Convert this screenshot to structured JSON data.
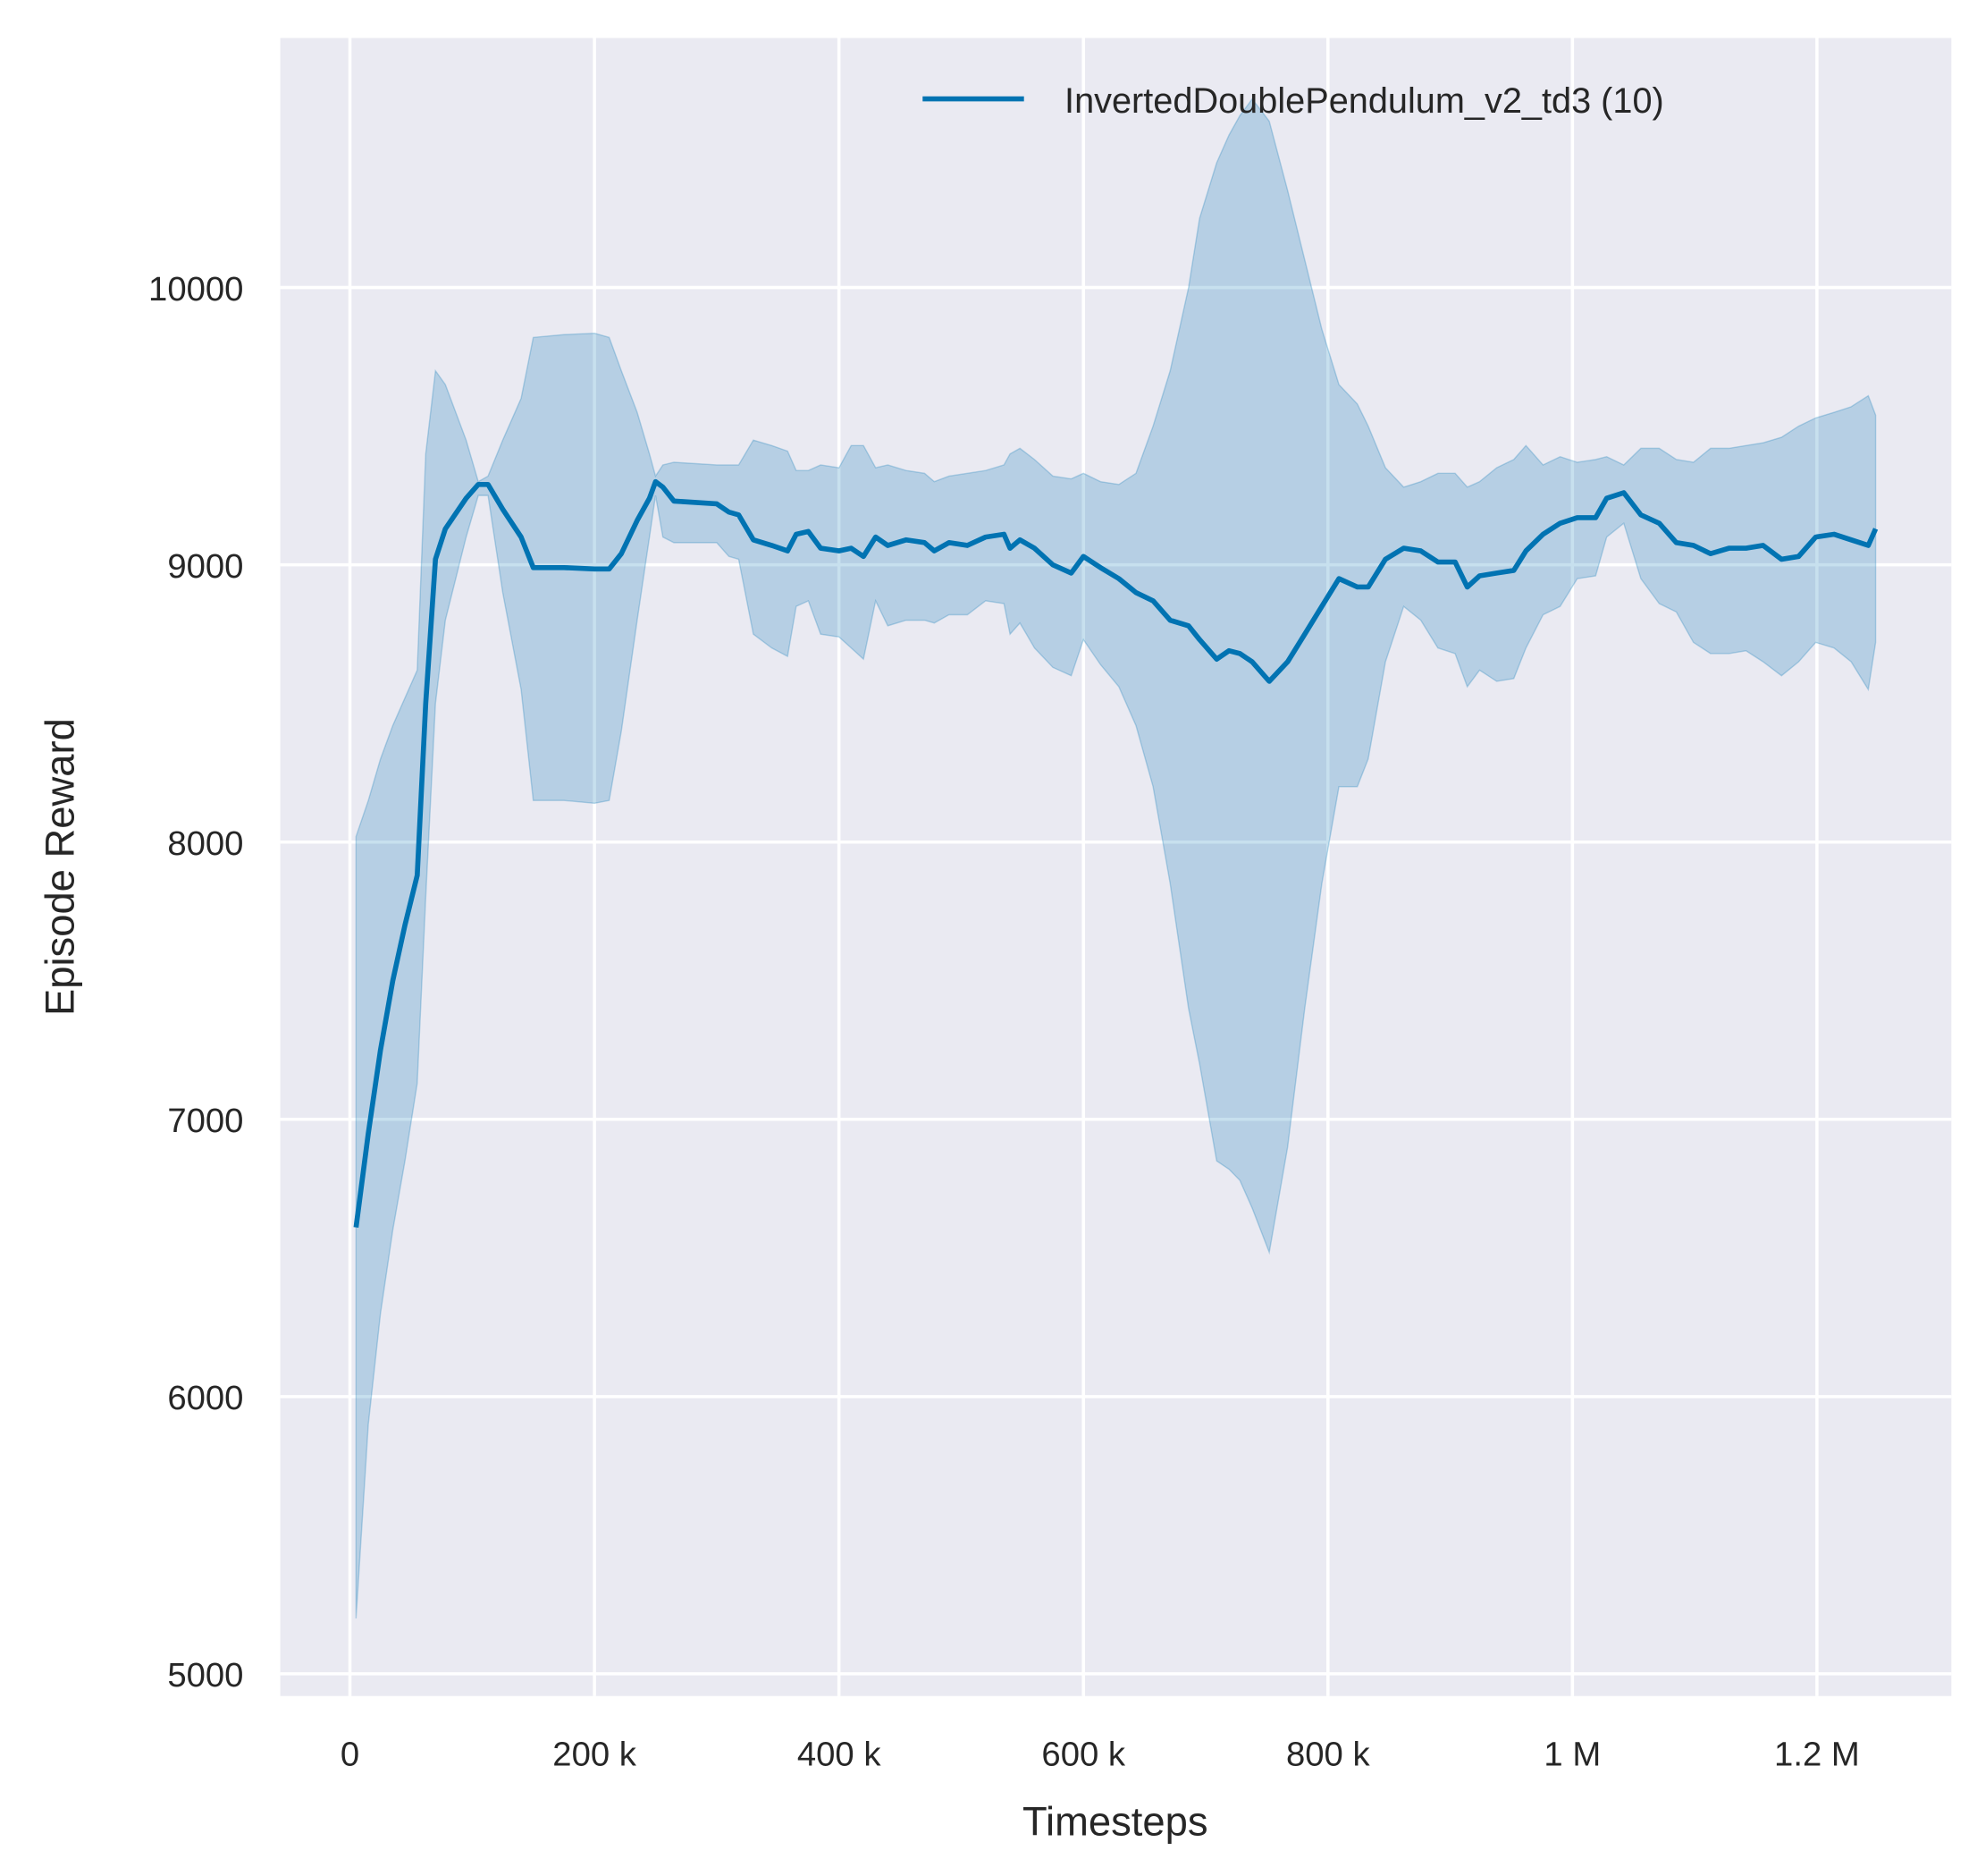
{
  "chart_data": {
    "type": "line",
    "xlabel": "Timesteps",
    "ylabel": "Episode Reward",
    "xlim": [
      -57000,
      1310000
    ],
    "ylim": [
      4920,
      10900
    ],
    "xticks": [
      0,
      200000,
      400000,
      600000,
      800000,
      1000000,
      1200000
    ],
    "xtick_labels": [
      "0",
      "200 k",
      "400 k",
      "600 k",
      "800 k",
      "1 M",
      "1.2 M"
    ],
    "yticks": [
      5000,
      6000,
      7000,
      8000,
      9000,
      10000
    ],
    "ytick_labels": [
      "5000",
      "6000",
      "7000",
      "8000",
      "9000",
      "10000"
    ],
    "grid": true,
    "background": "#eaeaf2",
    "legend_position": "top-right",
    "series": [
      {
        "name": "InvertedDoublePendulum_v2_td3 (10)",
        "color": "#0173b2",
        "band_color": "#0173b2",
        "columns": [
          "timesteps",
          "mean",
          "lower",
          "upper"
        ],
        "points": [
          [
            5000,
            6610,
            5200,
            8020
          ],
          [
            15000,
            6950,
            5900,
            8150
          ],
          [
            25000,
            7250,
            6300,
            8300
          ],
          [
            35000,
            7500,
            6600,
            8420
          ],
          [
            45000,
            7700,
            6850,
            8520
          ],
          [
            55000,
            7880,
            7130,
            8620
          ],
          [
            62000,
            8500,
            7800,
            9400
          ],
          [
            70000,
            9020,
            8500,
            9700
          ],
          [
            78000,
            9130,
            8800,
            9650
          ],
          [
            95000,
            9240,
            9100,
            9450
          ],
          [
            105000,
            9290,
            9250,
            9300
          ],
          [
            113000,
            9290,
            9250,
            9320
          ],
          [
            125000,
            9200,
            8900,
            9450
          ],
          [
            140000,
            9100,
            8550,
            9600
          ],
          [
            150000,
            8990,
            8150,
            9820
          ],
          [
            175000,
            8990,
            8150,
            9830
          ],
          [
            200000,
            8985,
            8140,
            9835
          ],
          [
            212000,
            8985,
            8150,
            9820
          ],
          [
            222000,
            9040,
            8400,
            9700
          ],
          [
            235000,
            9160,
            8800,
            9550
          ],
          [
            245000,
            9240,
            9100,
            9400
          ],
          [
            250000,
            9300,
            9250,
            9320
          ],
          [
            256000,
            9280,
            9100,
            9360
          ],
          [
            265000,
            9230,
            9080,
            9370
          ],
          [
            300000,
            9220,
            9080,
            9360
          ],
          [
            310000,
            9190,
            9030,
            9360
          ],
          [
            318000,
            9180,
            9020,
            9360
          ],
          [
            330000,
            9090,
            8750,
            9450
          ],
          [
            345000,
            9070,
            8700,
            9430
          ],
          [
            358000,
            9050,
            8670,
            9410
          ],
          [
            365000,
            9110,
            8850,
            9340
          ],
          [
            375000,
            9120,
            8870,
            9340
          ],
          [
            385000,
            9060,
            8750,
            9360
          ],
          [
            400000,
            9050,
            8740,
            9350
          ],
          [
            410000,
            9060,
            8700,
            9430
          ],
          [
            420000,
            9030,
            8660,
            9430
          ],
          [
            430000,
            9100,
            8870,
            9350
          ],
          [
            440000,
            9070,
            8780,
            9360
          ],
          [
            455000,
            9090,
            8800,
            9340
          ],
          [
            470000,
            9080,
            8800,
            9330
          ],
          [
            478000,
            9050,
            8790,
            9300
          ],
          [
            490000,
            9080,
            8820,
            9320
          ],
          [
            505000,
            9070,
            8820,
            9330
          ],
          [
            520000,
            9100,
            8870,
            9340
          ],
          [
            535000,
            9110,
            8860,
            9360
          ],
          [
            540000,
            9060,
            8750,
            9400
          ],
          [
            548000,
            9090,
            8790,
            9420
          ],
          [
            560000,
            9060,
            8700,
            9380
          ],
          [
            575000,
            9000,
            8630,
            9320
          ],
          [
            590000,
            8970,
            8600,
            9310
          ],
          [
            600000,
            9030,
            8730,
            9330
          ],
          [
            614000,
            8990,
            8640,
            9300
          ],
          [
            629000,
            8950,
            8560,
            9290
          ],
          [
            643000,
            8900,
            8420,
            9330
          ],
          [
            657000,
            8870,
            8200,
            9500
          ],
          [
            671000,
            8800,
            7850,
            9700
          ],
          [
            686000,
            8780,
            7400,
            10000
          ],
          [
            695000,
            8730,
            7200,
            10250
          ],
          [
            709000,
            8660,
            6850,
            10450
          ],
          [
            719000,
            8690,
            6820,
            10550
          ],
          [
            728000,
            8680,
            6780,
            10620
          ],
          [
            738000,
            8650,
            6680,
            10680
          ],
          [
            752000,
            8580,
            6520,
            10600
          ],
          [
            767000,
            8650,
            6900,
            10350
          ],
          [
            781000,
            8750,
            7400,
            10100
          ],
          [
            795000,
            8850,
            7850,
            9850
          ],
          [
            809000,
            8950,
            8200,
            9650
          ],
          [
            824000,
            8920,
            8200,
            9580
          ],
          [
            833000,
            8920,
            8300,
            9500
          ],
          [
            847000,
            9020,
            8650,
            9350
          ],
          [
            862000,
            9060,
            8850,
            9280
          ],
          [
            876000,
            9050,
            8800,
            9300
          ],
          [
            890000,
            9010,
            8700,
            9330
          ],
          [
            904000,
            9010,
            8680,
            9330
          ],
          [
            914000,
            8920,
            8560,
            9280
          ],
          [
            924000,
            8960,
            8620,
            9300
          ],
          [
            938000,
            8970,
            8580,
            9350
          ],
          [
            952000,
            8980,
            8590,
            9380
          ],
          [
            962000,
            9050,
            8700,
            9430
          ],
          [
            976000,
            9110,
            8820,
            9360
          ],
          [
            990000,
            9150,
            8850,
            9390
          ],
          [
            1004000,
            9170,
            8950,
            9370
          ],
          [
            1019000,
            9170,
            8960,
            9380
          ],
          [
            1028000,
            9240,
            9100,
            9390
          ],
          [
            1042000,
            9260,
            9150,
            9360
          ],
          [
            1056000,
            9180,
            8950,
            9420
          ],
          [
            1071000,
            9150,
            8860,
            9420
          ],
          [
            1085000,
            9080,
            8830,
            9380
          ],
          [
            1099000,
            9070,
            8720,
            9370
          ],
          [
            1113000,
            9040,
            8680,
            9420
          ],
          [
            1128000,
            9060,
            8680,
            9420
          ],
          [
            1142000,
            9060,
            8690,
            9430
          ],
          [
            1156000,
            9070,
            8650,
            9440
          ],
          [
            1171000,
            9020,
            8600,
            9460
          ],
          [
            1185000,
            9030,
            8650,
            9500
          ],
          [
            1199000,
            9100,
            8720,
            9530
          ],
          [
            1214000,
            9110,
            8700,
            9550
          ],
          [
            1228000,
            9090,
            8650,
            9570
          ],
          [
            1242000,
            9070,
            8550,
            9610
          ],
          [
            1248000,
            9130,
            8720,
            9540
          ]
        ]
      }
    ]
  }
}
